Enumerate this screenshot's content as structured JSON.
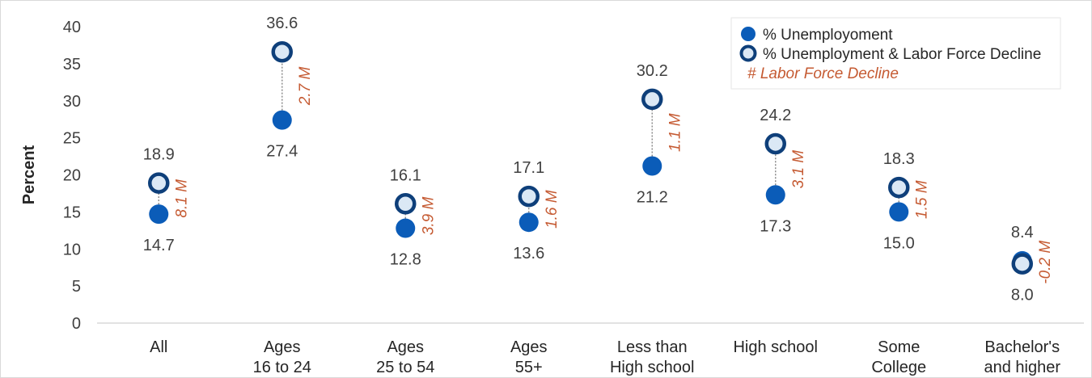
{
  "chart_data": {
    "type": "dot-range",
    "ylabel": "Percent",
    "ylim": [
      0,
      40
    ],
    "yticks": [
      0,
      5,
      10,
      15,
      20,
      25,
      30,
      35,
      40
    ],
    "grid": false,
    "legend_position": "top-right",
    "categories": [
      [
        "All"
      ],
      [
        "Ages",
        "16 to 24"
      ],
      [
        "Ages",
        "25 to 54"
      ],
      [
        "Ages",
        "55+"
      ],
      [
        "Less than",
        "High school"
      ],
      [
        "High school"
      ],
      [
        "Some",
        "College"
      ],
      [
        "Bachelor's",
        "and higher"
      ]
    ],
    "series": [
      {
        "name": "% Unemployoment",
        "values": [
          14.7,
          27.4,
          12.8,
          13.6,
          21.2,
          17.3,
          15.0,
          8.4
        ],
        "color": "#0b5cb8"
      },
      {
        "name": "% Unemployment & Labor Force Decline",
        "values": [
          18.9,
          36.6,
          16.1,
          17.1,
          30.2,
          24.2,
          18.3,
          8.0
        ],
        "color": "#dbe8f5",
        "edge_color": "#0e3f7a"
      }
    ],
    "annotation_series": {
      "name": "# Labor Force Decline",
      "labels": [
        "8.1 M",
        "2.7 M",
        "3.9 M",
        "1.6 M",
        "1.1 M",
        "3.1 M",
        "1.5 M",
        "-0.2 M"
      ],
      "color": "#c55a32"
    },
    "value_labels": {
      "unemployment": [
        "14.7",
        "27.4",
        "12.8",
        "13.6",
        "21.2",
        "17.3",
        "15.0",
        "8.4"
      ],
      "combined": [
        "18.9",
        "36.6",
        "16.1",
        "17.1",
        "30.2",
        "24.2",
        "18.3",
        "8.0"
      ]
    }
  }
}
